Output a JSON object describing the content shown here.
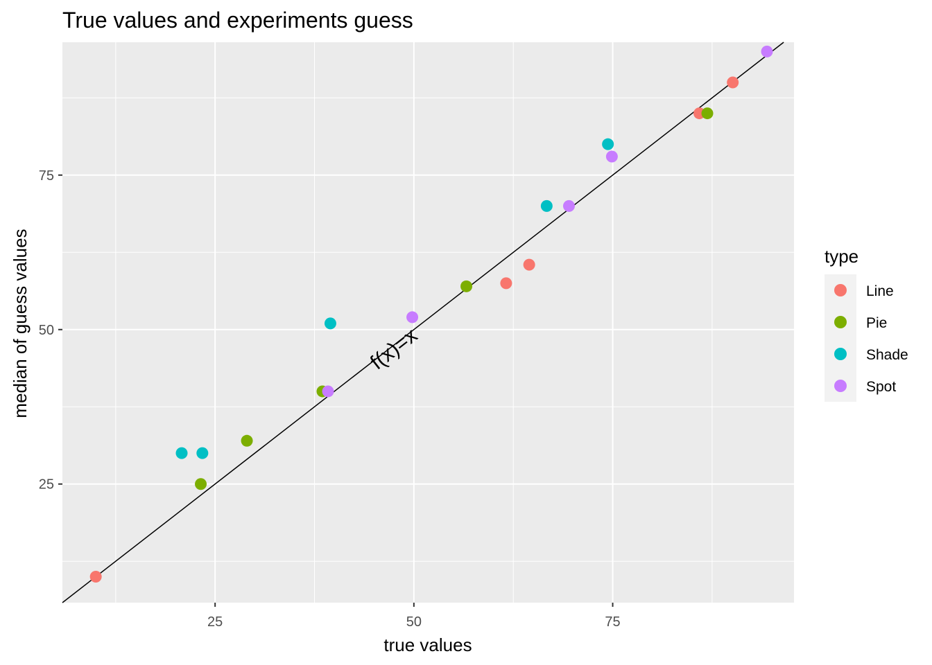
{
  "chart_data": {
    "type": "scatter",
    "title": "True values and experiments guess",
    "xlabel": "true values",
    "ylabel": "median of guess values",
    "xlim": [
      5.8,
      97.8
    ],
    "ylim": [
      5.8,
      96.5
    ],
    "x_ticks": [
      25,
      50,
      75
    ],
    "y_ticks": [
      25,
      50,
      75
    ],
    "x_minor": [
      12.5,
      37.5,
      62.5,
      87.5
    ],
    "y_minor": [
      12.5,
      37.5,
      62.5,
      87.5
    ],
    "grid": true,
    "reference_line": {
      "label": "f(x)=x",
      "label_x": 48,
      "label_y": 46
    },
    "legend": {
      "title": "type",
      "position": "right"
    },
    "series": [
      {
        "name": "Line",
        "color": "#F8766D",
        "points": [
          [
            10,
            10
          ],
          [
            61.6,
            57.5
          ],
          [
            64.5,
            60.5
          ],
          [
            85.9,
            85
          ],
          [
            90.1,
            90
          ]
        ]
      },
      {
        "name": "Pie",
        "color": "#7CAE00",
        "points": [
          [
            23.2,
            25
          ],
          [
            29,
            32
          ],
          [
            38.5,
            40
          ],
          [
            56.6,
            57
          ],
          [
            86.9,
            85
          ]
        ]
      },
      {
        "name": "Shade",
        "color": "#00BFC4",
        "points": [
          [
            20.8,
            30
          ],
          [
            23.4,
            30
          ],
          [
            39.5,
            51
          ],
          [
            66.7,
            70
          ],
          [
            74.4,
            80
          ]
        ]
      },
      {
        "name": "Spot",
        "color": "#C77CFF",
        "points": [
          [
            39.2,
            40
          ],
          [
            49.8,
            52
          ],
          [
            69.5,
            70
          ],
          [
            74.9,
            78
          ],
          [
            94.4,
            95
          ]
        ]
      }
    ]
  }
}
